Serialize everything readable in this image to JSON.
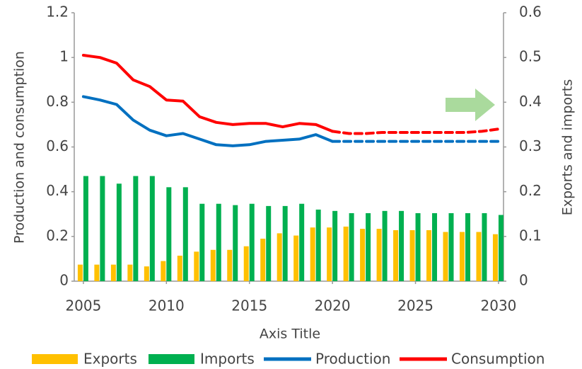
{
  "chart_data": {
    "type": "combo",
    "x": [
      2005,
      2006,
      2007,
      2008,
      2009,
      2010,
      2011,
      2012,
      2013,
      2014,
      2015,
      2016,
      2017,
      2018,
      2019,
      2020,
      2021,
      2022,
      2023,
      2024,
      2025,
      2026,
      2027,
      2028,
      2029,
      2030
    ],
    "xlim": [
      2004.45,
      2030.3
    ],
    "xticks": [
      2005,
      2010,
      2015,
      2020,
      2025,
      2030
    ],
    "xlabel": "Axis Title",
    "ylabel": "Production and consumption",
    "y2label": "Exports and imports",
    "ylim": [
      0,
      1.2
    ],
    "yticks": [
      0,
      0.2,
      0.4,
      0.6,
      0.8,
      1,
      1.2
    ],
    "y2lim": [
      0,
      0.6
    ],
    "y2ticks": [
      0,
      0.1,
      0.2,
      0.3,
      0.4,
      0.5,
      0.6
    ],
    "dashed_from": 2020,
    "series": [
      {
        "name": "Exports",
        "kind": "bar",
        "axis": "y2",
        "color": "#FFC000",
        "values": [
          0.037,
          0.037,
          0.037,
          0.037,
          0.033,
          0.045,
          0.057,
          0.066,
          0.07,
          0.07,
          0.078,
          0.095,
          0.107,
          0.102,
          0.12,
          0.12,
          0.122,
          0.117,
          0.117,
          0.114,
          0.114,
          0.114,
          0.11,
          0.11,
          0.11,
          0.105
        ]
      },
      {
        "name": "Imports",
        "kind": "bar",
        "axis": "y2",
        "color": "#00B050",
        "values": [
          0.235,
          0.235,
          0.218,
          0.235,
          0.235,
          0.21,
          0.21,
          0.173,
          0.173,
          0.17,
          0.173,
          0.168,
          0.168,
          0.173,
          0.16,
          0.157,
          0.152,
          0.152,
          0.157,
          0.157,
          0.152,
          0.152,
          0.152,
          0.152,
          0.152,
          0.148
        ]
      },
      {
        "name": "Production",
        "kind": "line",
        "color": "#0070C0",
        "values": [
          0.825,
          0.81,
          0.79,
          0.72,
          0.675,
          0.65,
          0.66,
          0.635,
          0.61,
          0.605,
          0.61,
          0.625,
          0.63,
          0.635,
          0.655,
          0.625,
          0.625,
          0.625,
          0.625,
          0.625,
          0.625,
          0.625,
          0.625,
          0.625,
          0.625,
          0.625
        ]
      },
      {
        "name": "Consumption",
        "kind": "line",
        "color": "#FF0000",
        "values": [
          1.01,
          1.0,
          0.975,
          0.9,
          0.87,
          0.81,
          0.805,
          0.735,
          0.71,
          0.7,
          0.705,
          0.705,
          0.69,
          0.705,
          0.7,
          0.67,
          0.66,
          0.66,
          0.665,
          0.665,
          0.665,
          0.665,
          0.665,
          0.665,
          0.67,
          0.68
        ]
      }
    ]
  }
}
